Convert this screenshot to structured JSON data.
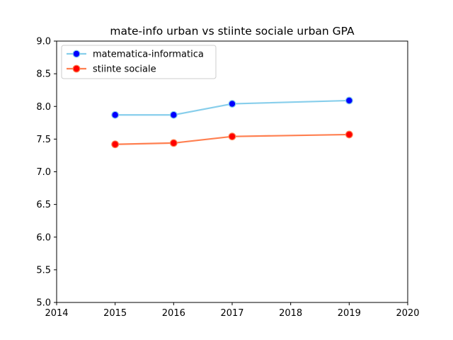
{
  "chart_data": {
    "type": "line",
    "title": "mate-info urban vs stiinte sociale urban GPA",
    "xlabel": "",
    "ylabel": "",
    "xlim": [
      2014,
      2020
    ],
    "ylim": [
      5.0,
      9.0
    ],
    "xticks": [
      "2014",
      "2015",
      "2016",
      "2017",
      "2018",
      "2019",
      "2020"
    ],
    "yticks": [
      "5.0",
      "5.5",
      "6.0",
      "6.5",
      "7.0",
      "7.5",
      "8.0",
      "8.5",
      "9.0"
    ],
    "x": [
      2015,
      2016,
      2017,
      2019
    ],
    "series": [
      {
        "name": "matematica-informatica",
        "values": [
          7.87,
          7.87,
          8.04,
          8.09
        ],
        "line_color": "#87ceeb",
        "marker_color": "#0000ff"
      },
      {
        "name": "stiinte sociale",
        "values": [
          7.42,
          7.44,
          7.54,
          7.57
        ],
        "line_color": "#ff7f50",
        "marker_color": "#ff0000"
      }
    ],
    "legend_position": "top-left",
    "grid": false
  }
}
